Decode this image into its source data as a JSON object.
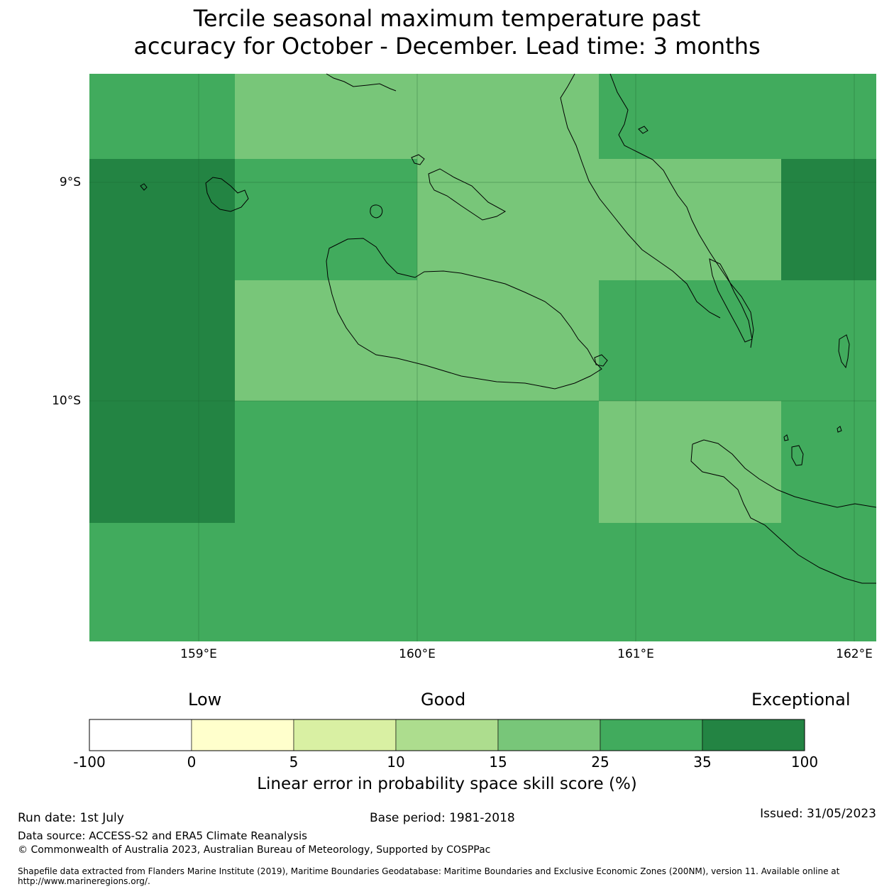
{
  "title": {
    "line1": "Tercile seasonal maximum temperature past",
    "line2": "accuracy for October - December. Lead time: 3 months"
  },
  "map": {
    "x_labels": [
      "159°E",
      "160°E",
      "161°E",
      "162°E"
    ],
    "y_labels": [
      "9°S",
      "10°S"
    ],
    "colors": {
      "exceptional": "#238443",
      "high": "#41ab5d",
      "good": "#78c679"
    }
  },
  "colorbar": {
    "categories": {
      "low": "Low",
      "good": "Good",
      "exceptional": "Exceptional"
    },
    "ticks": [
      "-100",
      "0",
      "5",
      "10",
      "15",
      "25",
      "35",
      "100"
    ],
    "colors": [
      "#ffffff",
      "#ffffcc",
      "#d9f0a3",
      "#addd8e",
      "#78c679",
      "#41ab5d",
      "#238443"
    ],
    "label": "Linear error in probability space skill score (%)"
  },
  "footer": {
    "run_date": "Run date: 1st July",
    "base_period": "Base period: 1981-2018",
    "issued": "Issued: 31/05/2023",
    "data_source": "Data source: ACCESS-S2 and ERA5 Climate Reanalysis",
    "copyright": "© Commonwealth of Australia 2023, Australian Bureau of Meteorology, Supported by COSPPac",
    "shapefile": "Shapefile data extracted from Flanders Marine Institute (2019), Maritime Boundaries Geodatabase: Maritime Boundaries and Exclusive Economic Zones (200NM), version 11. Available online at http://www.marineregions.org/."
  }
}
